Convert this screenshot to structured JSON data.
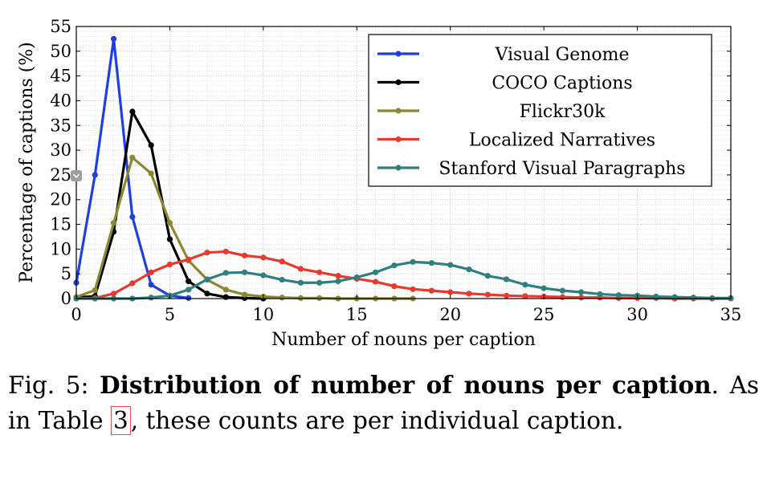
{
  "chart_data": {
    "type": "line",
    "xlabel": "Number of nouns per caption",
    "ylabel": "Percentage of captions (%)",
    "xlim": [
      0,
      35
    ],
    "ylim": [
      0,
      55
    ],
    "xticks": [
      "0",
      "5",
      "10",
      "15",
      "20",
      "25",
      "30",
      "35"
    ],
    "yticks": [
      "0",
      "5",
      "10",
      "15",
      "20",
      "25",
      "30",
      "35",
      "40",
      "45",
      "50",
      "55"
    ],
    "grid": true,
    "legend_position": "top-right",
    "series": [
      {
        "name": "Visual Genome",
        "color": "#1f3fe0",
        "x": [
          0,
          1,
          2,
          3,
          4,
          5,
          6
        ],
        "y": [
          3.2,
          25.0,
          52.5,
          16.5,
          2.8,
          0.6,
          0.1
        ]
      },
      {
        "name": "COCO Captions",
        "color": "#000000",
        "x": [
          0,
          1,
          2,
          3,
          4,
          5,
          6,
          7,
          8,
          9,
          10
        ],
        "y": [
          0.2,
          0.5,
          13.5,
          37.8,
          31.0,
          12.0,
          3.5,
          1.0,
          0.3,
          0.1,
          0.0
        ]
      },
      {
        "name": "Flickr30k",
        "color": "#8c8832",
        "x": [
          0,
          1,
          2,
          3,
          4,
          5,
          6,
          7,
          8,
          9,
          10,
          11,
          12,
          13,
          14,
          15,
          16,
          17,
          18
        ],
        "y": [
          0.3,
          1.7,
          15.3,
          28.5,
          25.3,
          15.3,
          7.7,
          3.8,
          1.8,
          0.8,
          0.4,
          0.2,
          0.1,
          0.1,
          0.0,
          0.0,
          0.0,
          0.0,
          0.0
        ]
      },
      {
        "name": "Localized Narratives",
        "color": "#e83a2c",
        "x": [
          0,
          1,
          2,
          3,
          4,
          5,
          6,
          7,
          8,
          9,
          10,
          11,
          12,
          13,
          14,
          15,
          16,
          17,
          18,
          19,
          20,
          21,
          22,
          23,
          24,
          25,
          26,
          27,
          28,
          29,
          30,
          31,
          32,
          33,
          34,
          35
        ],
        "y": [
          0.0,
          0.1,
          1.0,
          3.1,
          5.3,
          6.9,
          7.9,
          9.3,
          9.5,
          8.7,
          8.3,
          7.5,
          6.0,
          5.3,
          4.6,
          4.0,
          3.4,
          2.5,
          1.9,
          1.6,
          1.3,
          1.0,
          0.8,
          0.6,
          0.5,
          0.4,
          0.3,
          0.2,
          0.2,
          0.1,
          0.1,
          0.1,
          0.0,
          0.0,
          0.0,
          0.0
        ]
      },
      {
        "name": "Stanford Visual Paragraphs",
        "color": "#2f7f7f",
        "x": [
          0,
          1,
          2,
          3,
          4,
          5,
          6,
          7,
          8,
          9,
          10,
          11,
          12,
          13,
          14,
          15,
          16,
          17,
          18,
          19,
          20,
          21,
          22,
          23,
          24,
          25,
          26,
          27,
          28,
          29,
          30,
          31,
          32,
          33,
          34,
          35
        ],
        "y": [
          0.0,
          0.0,
          0.0,
          0.0,
          0.2,
          0.6,
          1.8,
          3.9,
          5.2,
          5.3,
          4.7,
          3.8,
          3.2,
          3.2,
          3.5,
          4.3,
          5.3,
          6.7,
          7.4,
          7.2,
          6.8,
          5.9,
          4.6,
          3.9,
          2.8,
          2.1,
          1.6,
          1.3,
          0.9,
          0.7,
          0.6,
          0.4,
          0.3,
          0.2,
          0.1,
          0.1
        ]
      }
    ]
  },
  "caption": {
    "label": "Fig. 5:",
    "title": "Distribution of number of nouns per caption",
    "text_before_ref": ". As in Table ",
    "ref": "3",
    "text_after_ref": ", these counts are per individual caption."
  }
}
